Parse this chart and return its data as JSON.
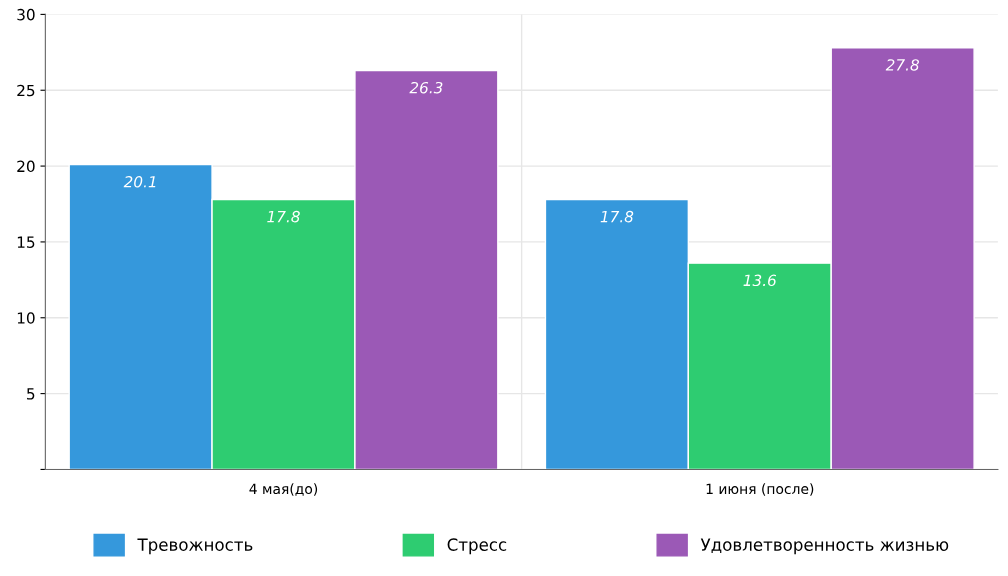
{
  "chart_data": {
    "type": "bar",
    "categories": [
      "4 мая(до)",
      "1 июня (после)"
    ],
    "series": [
      {
        "name": "Тревожность",
        "color": "#3598dc",
        "values": [
          20.1,
          17.8
        ]
      },
      {
        "name": "Стресс",
        "color": "#2ecc71",
        "values": [
          17.8,
          13.6
        ]
      },
      {
        "name": "Удовлетворенность жизнью",
        "color": "#9b59b6",
        "values": [
          26.3,
          27.8
        ]
      }
    ],
    "ylim": [
      0,
      30
    ],
    "yticks": [
      {
        "value": 0,
        "label": null
      },
      5,
      10,
      15,
      20,
      25,
      30
    ],
    "grid": "y",
    "legend": "bottom",
    "data_labels": true
  }
}
